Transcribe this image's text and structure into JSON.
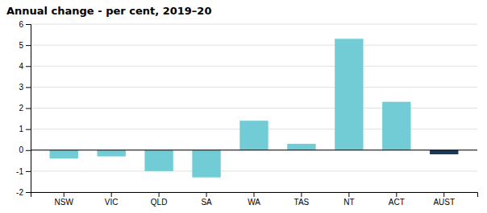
{
  "chart_data": {
    "type": "bar",
    "title": "Annual change - per cent, 2019–20",
    "categories": [
      "NSW",
      "VIC",
      "QLD",
      "SA",
      "WA",
      "TAS",
      "NT",
      "ACT",
      "AUST"
    ],
    "values": [
      -0.4,
      -0.3,
      -1.0,
      -1.3,
      1.4,
      0.3,
      5.3,
      2.3,
      -0.2
    ],
    "colors": [
      "#72ccd6",
      "#72ccd6",
      "#72ccd6",
      "#72ccd6",
      "#72ccd6",
      "#72ccd6",
      "#72ccd6",
      "#72ccd6",
      "#1a3a5c"
    ],
    "ylim": [
      -2,
      6
    ],
    "yticks": [
      -2,
      -1,
      0,
      1,
      2,
      3,
      4,
      5,
      6
    ],
    "grid": true
  }
}
